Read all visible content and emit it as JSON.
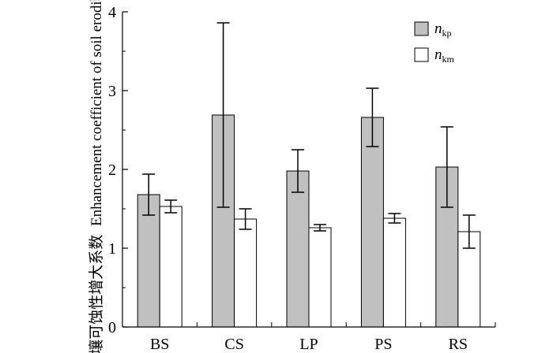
{
  "chart_data": {
    "type": "bar",
    "categories": [
      "BS",
      "CS",
      "LP",
      "PS",
      "RS"
    ],
    "ylabel": "土壤可蚀性增大系数 Enhancement coefficient of soil erodibility",
    "ylabel_cn": "土壤可蚀性增大系数",
    "ylabel_en": "Enhancement coefficient of soil erodibility",
    "ylim": [
      0,
      4
    ],
    "yticks": [
      0,
      1,
      2,
      3,
      4
    ],
    "grid": false,
    "legend_position": "top-right",
    "series": [
      {
        "name": "n_kp",
        "legend_main": "n",
        "legend_sub": "kp",
        "color": "#c0c0c0",
        "values": [
          1.68,
          2.69,
          1.98,
          2.66,
          2.03
        ],
        "errors": [
          0.26,
          1.17,
          0.27,
          0.37,
          0.51
        ]
      },
      {
        "name": "n_km",
        "legend_main": "n",
        "legend_sub": "km",
        "color": "#ffffff",
        "values": [
          1.53,
          1.37,
          1.26,
          1.38,
          1.21
        ],
        "errors": [
          0.08,
          0.13,
          0.04,
          0.06,
          0.21
        ]
      }
    ]
  }
}
